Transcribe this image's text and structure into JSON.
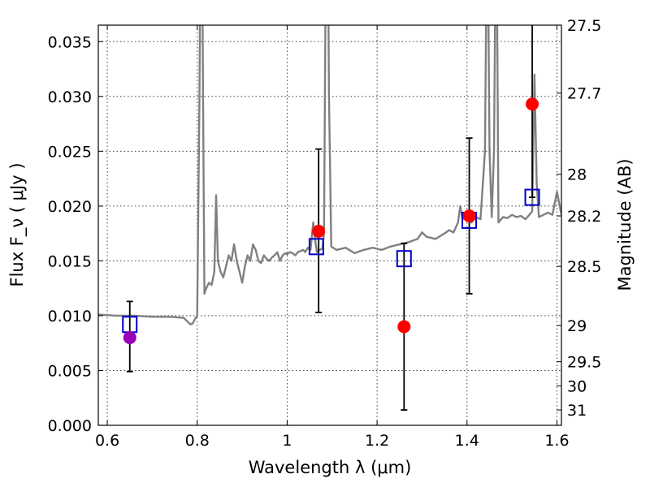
{
  "chart_data": {
    "type": "scatter",
    "xlabel": "Wavelength  λ (μm)",
    "ylabel": "Flux  F_ν  ( μJy )",
    "y2label": "Magnitude (AB)",
    "xlim": [
      0.58,
      1.61
    ],
    "ylim": [
      0.0,
      0.0365
    ],
    "x_ticks": [
      0.6,
      0.8,
      1.0,
      1.2,
      1.4,
      1.6
    ],
    "x_tick_labels": [
      "0.6",
      "0.8",
      "1",
      "1.2",
      "1.4",
      "1.6"
    ],
    "y_ticks": [
      0.0,
      0.005,
      0.01,
      0.015,
      0.02,
      0.025,
      0.03,
      0.035
    ],
    "y_tick_labels": [
      "0.000",
      "0.005",
      "0.010",
      "0.015",
      "0.020",
      "0.025",
      "0.030",
      "0.035"
    ],
    "y2_ticks": [
      {
        "label": "27.5",
        "flux": 0.0365
      },
      {
        "label": "27.7",
        "flux": 0.0303
      },
      {
        "label": "28",
        "flux": 0.0229
      },
      {
        "label": "28.2",
        "flux": 0.0191
      },
      {
        "label": "28.5",
        "flux": 0.0145
      },
      {
        "label": "29",
        "flux": 0.0091
      },
      {
        "label": "29.5",
        "flux": 0.0058
      },
      {
        "label": "30",
        "flux": 0.0036
      },
      {
        "label": "31",
        "flux": 0.0014
      }
    ],
    "grid": true,
    "colors": {
      "model": "#808080",
      "observed": "#ff0000",
      "observed_first": "#9900bb",
      "model_flux": "#0000cc",
      "errorbar": "#000000"
    },
    "series": [
      {
        "kind": "line",
        "x": [
          0.58,
          0.62,
          0.66,
          0.7,
          0.74,
          0.77,
          0.785,
          0.79,
          0.795,
          0.8,
          0.805,
          0.808,
          0.81,
          0.813,
          0.816,
          0.82,
          0.826,
          0.832,
          0.838,
          0.842,
          0.846,
          0.852,
          0.858,
          0.864,
          0.87,
          0.876,
          0.882,
          0.888,
          0.894,
          0.9,
          0.906,
          0.912,
          0.918,
          0.924,
          0.93,
          0.936,
          0.942,
          0.948,
          0.954,
          0.96,
          0.966,
          0.972,
          0.978,
          0.984,
          0.99,
          0.996,
          1.0,
          1.006,
          1.012,
          1.018,
          1.024,
          1.03,
          1.036,
          1.04,
          1.046,
          1.052,
          1.058,
          1.062,
          1.066,
          1.072,
          1.078,
          1.082,
          1.084,
          1.087,
          1.09,
          1.093,
          1.098,
          1.11,
          1.13,
          1.15,
          1.17,
          1.19,
          1.21,
          1.23,
          1.25,
          1.27,
          1.29,
          1.3,
          1.31,
          1.33,
          1.35,
          1.36,
          1.37,
          1.38,
          1.385,
          1.39,
          1.4,
          1.41,
          1.42,
          1.43,
          1.44,
          1.445,
          1.45,
          1.455,
          1.46,
          1.465,
          1.47,
          1.48,
          1.49,
          1.5,
          1.51,
          1.52,
          1.53,
          1.545,
          1.55,
          1.555,
          1.56,
          1.57,
          1.58,
          1.59,
          1.6,
          1.61
        ],
        "y": [
          0.0101,
          0.01,
          0.01,
          0.0099,
          0.0099,
          0.0098,
          0.0092,
          0.0093,
          0.0097,
          0.01,
          0.03,
          0.05,
          0.05,
          0.03,
          0.012,
          0.0125,
          0.013,
          0.0128,
          0.014,
          0.021,
          0.015,
          0.014,
          0.0135,
          0.0145,
          0.0155,
          0.015,
          0.0165,
          0.015,
          0.014,
          0.013,
          0.0145,
          0.0155,
          0.015,
          0.0165,
          0.016,
          0.015,
          0.0148,
          0.0155,
          0.0152,
          0.015,
          0.0153,
          0.0155,
          0.0158,
          0.015,
          0.0155,
          0.0157,
          0.0156,
          0.0158,
          0.0157,
          0.0155,
          0.0158,
          0.0159,
          0.016,
          0.0158,
          0.0162,
          0.016,
          0.0185,
          0.017,
          0.0158,
          0.016,
          0.0161,
          0.0175,
          0.03,
          0.05,
          0.05,
          0.03,
          0.0163,
          0.016,
          0.0162,
          0.0157,
          0.016,
          0.0162,
          0.016,
          0.0163,
          0.0165,
          0.0167,
          0.017,
          0.0176,
          0.0172,
          0.017,
          0.0175,
          0.0178,
          0.0176,
          0.0185,
          0.02,
          0.0188,
          0.019,
          0.0185,
          0.019,
          0.0188,
          0.025,
          0.05,
          0.025,
          0.019,
          0.025,
          0.05,
          0.0185,
          0.019,
          0.0189,
          0.0192,
          0.019,
          0.0191,
          0.0188,
          0.0195,
          0.032,
          0.022,
          0.019,
          0.0192,
          0.0194,
          0.0192,
          0.0213,
          0.0192
        ]
      },
      {
        "kind": "model_flux",
        "x": [
          0.65,
          1.065,
          1.26,
          1.405,
          1.545
        ],
        "y": [
          0.0092,
          0.0163,
          0.0152,
          0.0187,
          0.0208
        ]
      },
      {
        "kind": "observed",
        "x": [
          0.65,
          1.07,
          1.26,
          1.405,
          1.545
        ],
        "y": [
          0.008,
          0.0177,
          0.009,
          0.0191,
          0.0293
        ],
        "y_low": [
          0.0049,
          0.0103,
          0.0014,
          0.012,
          0.0208
        ],
        "y_high": [
          0.0113,
          0.0252,
          0.0166,
          0.0262,
          0.037
        ]
      }
    ]
  }
}
